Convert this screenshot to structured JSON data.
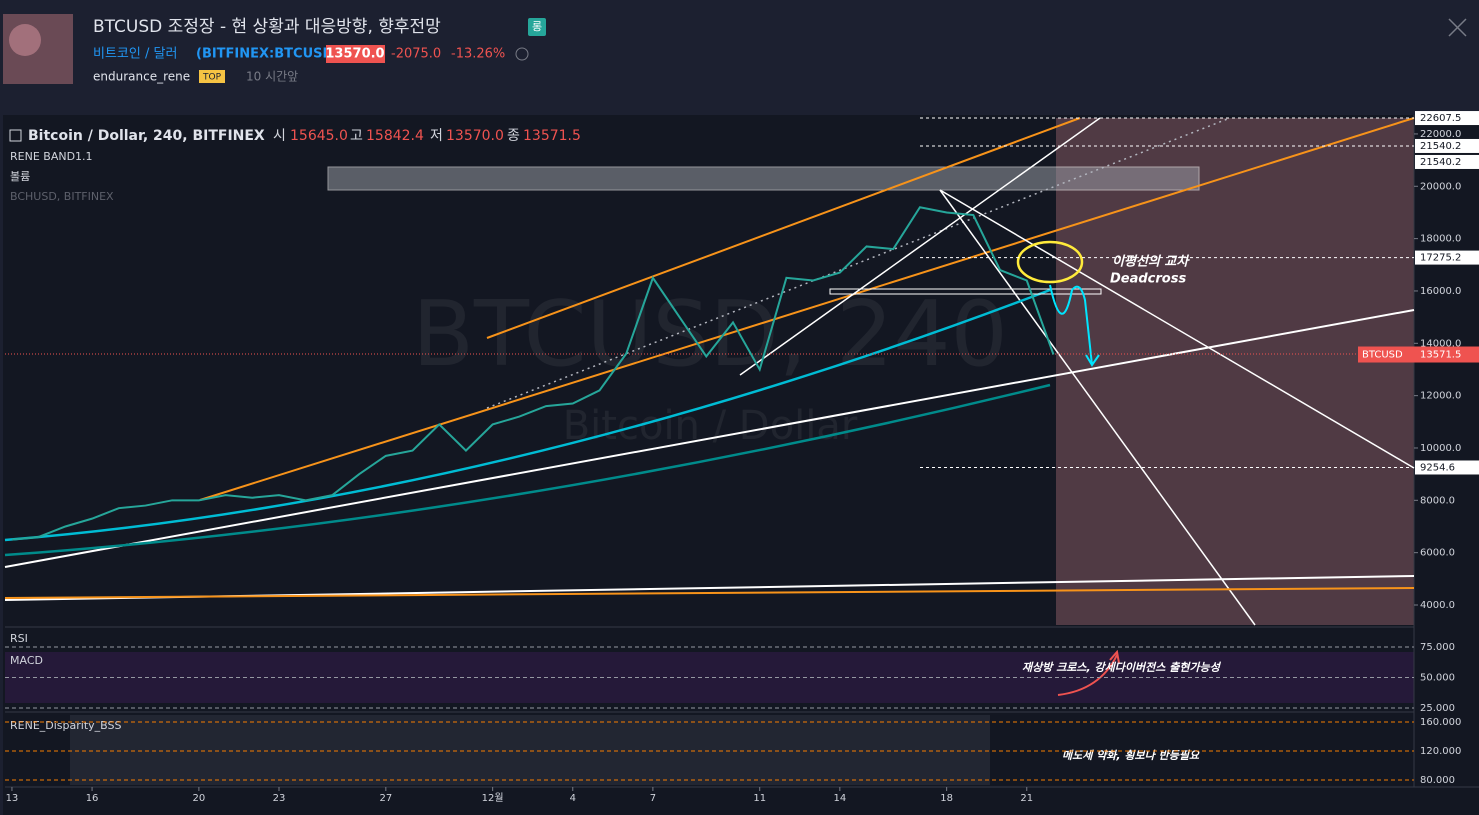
{
  "header": {
    "title": "BTCUSD 조정장 - 현 상황과 대응방향, 향후전망",
    "badge": "롱",
    "symbol_name": "비트코인 / 달러",
    "symbol_code": "(BITFINEX:BTCUSD)",
    "price": "13570.0",
    "change": "-2075.0",
    "change_pct": "-13.26%",
    "author": "endurance_rene",
    "author_badge": "TOP",
    "time": "10 시간앞"
  },
  "legend": {
    "open_label": "시",
    "open": "15645.0",
    "high_label": "고",
    "high": "15842.4",
    "low_label": "저",
    "low": "13570.0",
    "close_label": "종",
    "close": "13571.5",
    "indicators": [
      "RENE BAND1.1",
      "볼륨",
      "BCHUSD, BITFINEX"
    ]
  },
  "watermark": [
    "BTCUSD, 240",
    "Bitcoin / Dollar"
  ],
  "annotations": [
    "이평선의 교차",
    "Deadcross",
    "재상방 크로스, 강세다이버전스 출현가능성",
    "메도세 약화, 횡보나 반등필요"
  ],
  "chart_data": {
    "type": "line",
    "title": "Bitcoin / Dollar, 240, BITFINEX",
    "x": [
      0,
      1,
      2,
      3,
      4,
      5,
      6,
      7,
      8,
      9,
      10,
      11,
      12,
      13,
      14,
      15,
      16,
      17,
      18,
      19,
      20,
      21,
      22,
      23,
      24,
      25,
      26,
      27,
      28,
      29,
      30,
      31,
      32,
      33,
      34,
      35,
      36,
      37,
      38,
      39
    ],
    "series": [
      {
        "name": "BTCUSD",
        "color": "#26a69a",
        "values": [
          6500,
          6600,
          7000,
          7300,
          7700,
          7800,
          8000,
          8000,
          8200,
          8100,
          8200,
          8000,
          8200,
          9000,
          9700,
          9900,
          10900,
          9900,
          10900,
          11200,
          11600,
          11700,
          12200,
          13600,
          16500,
          15000,
          13500,
          14800,
          13000,
          16500,
          16400,
          16700,
          17700,
          17600,
          19200,
          19000,
          18900,
          16800,
          16400,
          13571.5
        ]
      }
    ],
    "xlim": [
      -0.26,
      52.5
    ],
    "ylim": [
      3236,
      22609
    ],
    "xticks": [
      {
        "value": 0,
        "label": "13"
      },
      {
        "value": 3,
        "label": "16"
      },
      {
        "value": 7,
        "label": "20"
      },
      {
        "value": 10,
        "label": "23"
      },
      {
        "value": 14,
        "label": "27"
      },
      {
        "value": 18,
        "label": "12월"
      },
      {
        "value": 21,
        "label": "4"
      },
      {
        "value": 24,
        "label": "7"
      },
      {
        "value": 28,
        "label": "11"
      },
      {
        "value": 31,
        "label": "14"
      },
      {
        "value": 35,
        "label": "18"
      },
      {
        "value": 38,
        "label": "21"
      }
    ],
    "yticks": [
      {
        "value": 4000,
        "label": "4000.0"
      },
      {
        "value": 6000,
        "label": "6000.0"
      },
      {
        "value": 8000,
        "label": "8000.0"
      },
      {
        "value": 10000,
        "label": "10000.0"
      },
      {
        "value": 12000,
        "label": "12000.0"
      },
      {
        "value": 14000,
        "label": "14000.0"
      },
      {
        "value": 16000,
        "label": "16000.0"
      },
      {
        "value": 18000,
        "label": "18000.0"
      },
      {
        "value": 20000,
        "label": "20000.0"
      },
      {
        "value": 22000,
        "label": "22000.0"
      }
    ],
    "levels": [
      22607.5,
      21540.2,
      21540.2,
      17275.2,
      9254.6
    ]
  },
  "rsi_pane": {
    "labels": [
      "RSI",
      "MACD"
    ],
    "ylim": [
      21.7,
      88.9
    ],
    "yticks": [
      {
        "value": 75,
        "label": "75.000"
      },
      {
        "value": 50,
        "label": "50.000"
      },
      {
        "value": 25,
        "label": "25.000"
      }
    ]
  },
  "disparity_pane": {
    "label": "RENE_Disparity_BSS",
    "ylim": [
      70.3,
      169.7
    ],
    "yticks": [
      {
        "value": 160,
        "label": "160.000"
      },
      {
        "value": 120,
        "label": "120.000"
      },
      {
        "value": 80,
        "label": "80.000"
      }
    ]
  }
}
